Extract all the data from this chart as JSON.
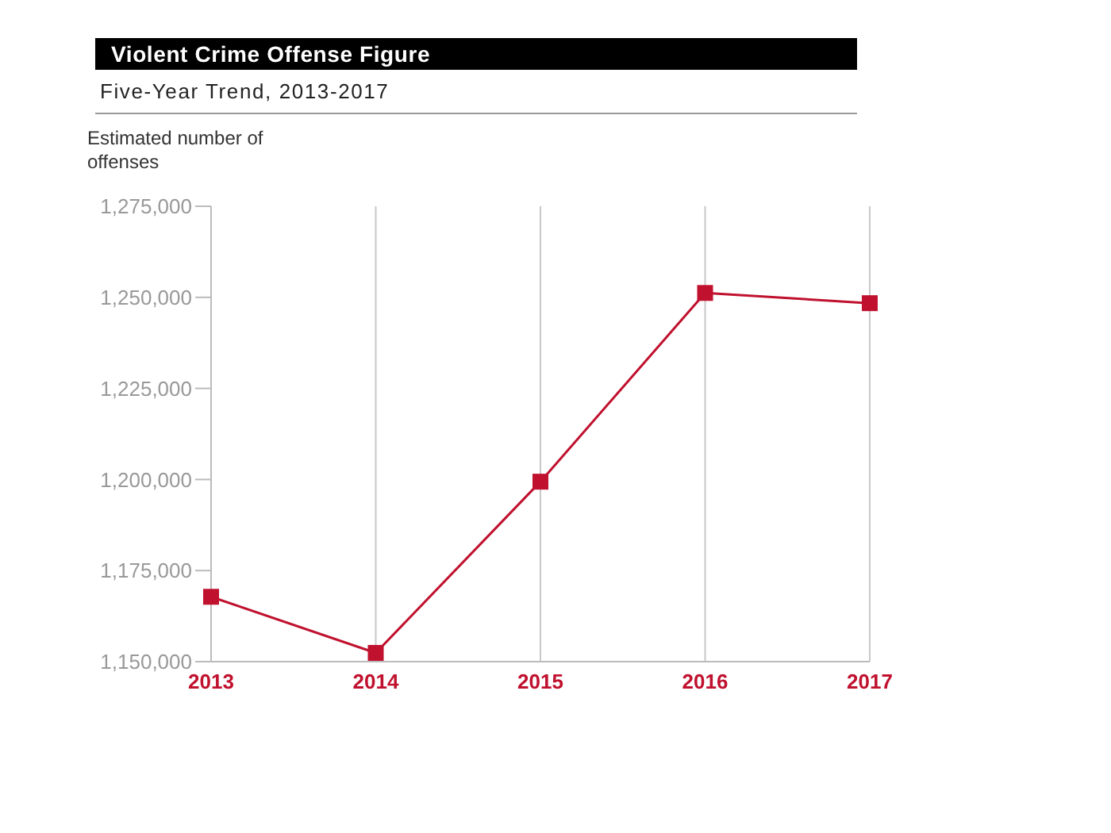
{
  "chart_data": {
    "type": "line",
    "title": "Violent Crime Offense Figure",
    "subtitle": "Five-Year Trend, 2013-2017",
    "ylabel": "Estimated number of offenses",
    "categories": [
      "2013",
      "2014",
      "2015",
      "2016",
      "2017"
    ],
    "series": [
      {
        "color": "#c0112e",
        "values": [
          1167800,
          1152400,
          1199400,
          1251200,
          1248400
        ]
      }
    ],
    "ylim": [
      1150000,
      1275000
    ],
    "yticks": [
      {
        "value": 1150000,
        "label": "1,150,000"
      },
      {
        "value": 1175000,
        "label": "1,175,000"
      },
      {
        "value": 1200000,
        "label": "1,200,000"
      },
      {
        "value": 1225000,
        "label": "1,225,000"
      },
      {
        "value": 1250000,
        "label": "1,250,000"
      },
      {
        "value": 1275000,
        "label": "1,275,000"
      }
    ],
    "grid": "x",
    "legend": false,
    "marker": "square",
    "line_style": "solid"
  }
}
